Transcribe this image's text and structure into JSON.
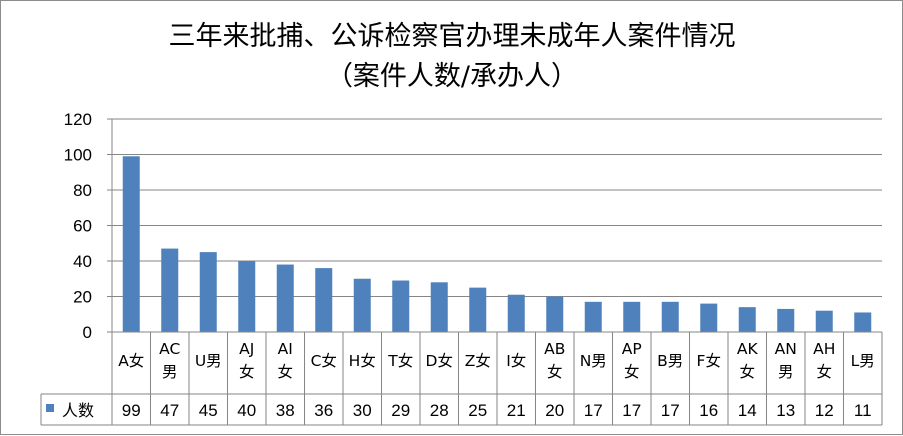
{
  "chart_data": {
    "type": "bar",
    "title_lines": [
      "三年来批捕、公诉检察官办理未成年人案件情况",
      "（案件人数/承办人）"
    ],
    "categories": [
      [
        "A女"
      ],
      [
        "AC",
        "男"
      ],
      [
        "U男"
      ],
      [
        "AJ",
        "女"
      ],
      [
        "AI",
        "女"
      ],
      [
        "C女"
      ],
      [
        "H女"
      ],
      [
        "T女"
      ],
      [
        "D女"
      ],
      [
        "Z女"
      ],
      [
        "I女"
      ],
      [
        "AB",
        "女"
      ],
      [
        "N男"
      ],
      [
        "AP",
        "女"
      ],
      [
        "B男"
      ],
      [
        "F女"
      ],
      [
        "AK",
        "女"
      ],
      [
        "AN",
        "男"
      ],
      [
        "AH",
        "女"
      ],
      [
        "L男"
      ]
    ],
    "series": [
      {
        "name": "人数",
        "color": "#4f81bd",
        "values": [
          99,
          47,
          45,
          40,
          38,
          36,
          30,
          29,
          28,
          25,
          21,
          20,
          17,
          17,
          17,
          16,
          14,
          13,
          12,
          11
        ]
      }
    ],
    "ylim": [
      0,
      120
    ],
    "yticks": [
      0,
      20,
      40,
      60,
      80,
      100,
      120
    ],
    "grid": true,
    "legend": "data-table-left"
  }
}
